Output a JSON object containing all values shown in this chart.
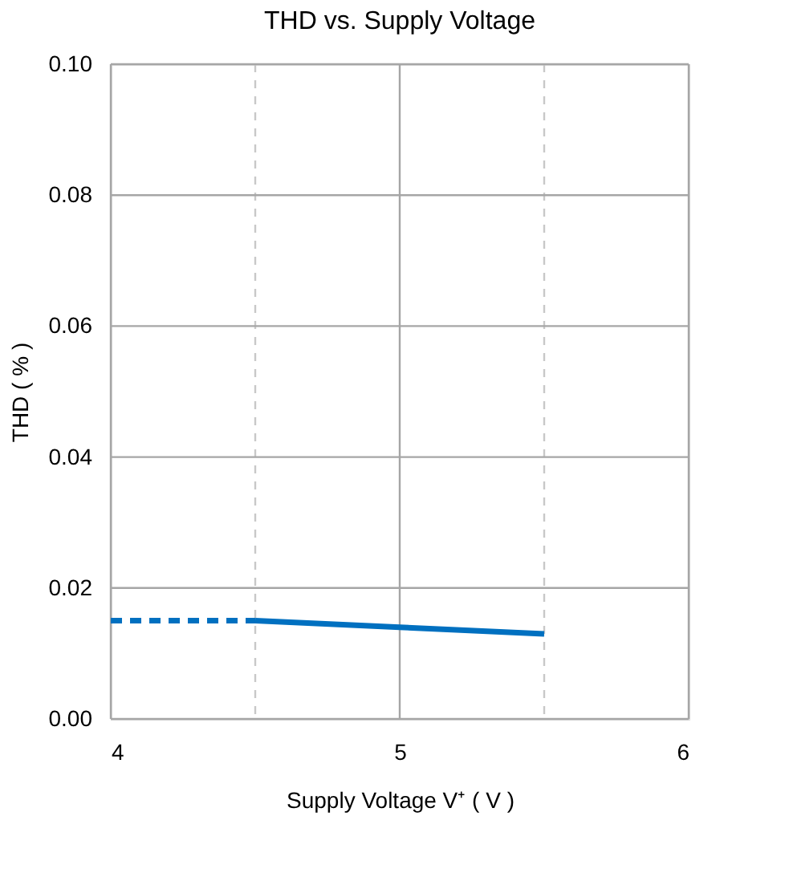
{
  "chart_data": {
    "type": "line",
    "title": "THD vs. Supply Voltage",
    "xlabel": "Supply Voltage V⁺ ( V )",
    "ylabel": "THD ( % )",
    "xlim": [
      4,
      6
    ],
    "xticks": [
      4,
      {
        "value": 4.5,
        "label": null
      },
      5,
      {
        "value": 5.5,
        "label": null
      },
      6
    ],
    "ylim": [
      0,
      0.1
    ],
    "yticks": [
      {
        "value": 0,
        "label": "0.00"
      },
      {
        "value": 0.02,
        "label": "0.02"
      },
      {
        "value": 0.04,
        "label": "0.04"
      },
      {
        "value": 0.06,
        "label": "0.06"
      },
      {
        "value": 0.08,
        "label": "0.08"
      },
      {
        "value": 0.1,
        "label": "0.10"
      }
    ],
    "grid": true,
    "marker": "none",
    "series": [
      {
        "color": "#0070c0",
        "line_style": "dashed",
        "x": [
          4,
          4.5
        ],
        "values": [
          0.015,
          0.015
        ]
      },
      {
        "color": "#0070c0",
        "line_style": "solid",
        "x": [
          4.5,
          5,
          5.5
        ],
        "values": [
          0.015,
          0.014,
          0.013
        ]
      }
    ]
  }
}
